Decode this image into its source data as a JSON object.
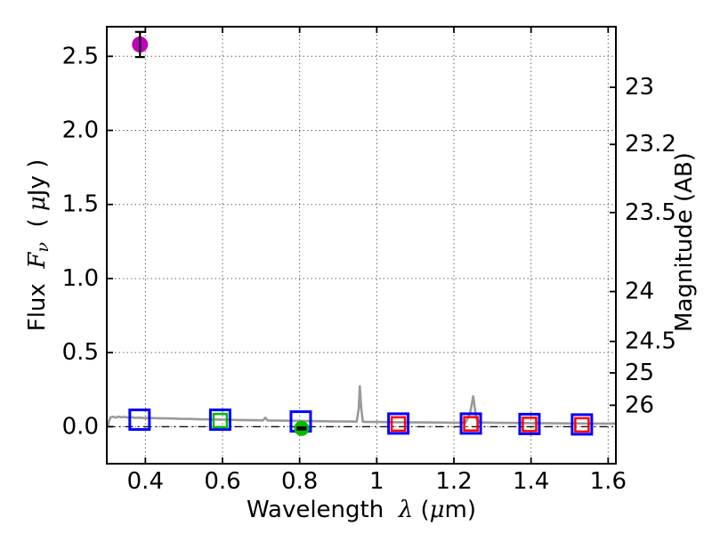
{
  "figure": {
    "background": "#ffffff",
    "title": ""
  },
  "chart_data": {
    "type": "line+scatter",
    "title": "",
    "xlabel": "Wavelength  λ (μm)",
    "xlabel_parts": [
      {
        "text": "Wavelength  "
      },
      {
        "text": "λ",
        "math": true
      },
      {
        "text": " ("
      },
      {
        "text": "μ",
        "math": true
      },
      {
        "text": "m)"
      }
    ],
    "ylabel_left": "Flux Fν ( μJy )",
    "ylabel_left_parts": [
      {
        "text": "Flux  "
      },
      {
        "text": "F",
        "math": true
      },
      {
        "text": "ν",
        "math": true,
        "sub": true
      },
      {
        "text": "  ( "
      },
      {
        "text": "μ",
        "math": true
      },
      {
        "text": "Jy )"
      }
    ],
    "ylabel_right": "Magnitude (AB)",
    "ylabel_right_parts": [
      {
        "text": "Magnitude (AB)"
      }
    ],
    "xlim": [
      0.3,
      1.62
    ],
    "ylim_flux": [
      -0.25,
      2.7
    ],
    "ab_zeropoint_ujy": 23.9,
    "x_ticks": [
      {
        "value": 0.4,
        "label": "0.4"
      },
      {
        "value": 0.6,
        "label": "0.6"
      },
      {
        "value": 0.8,
        "label": "0.8"
      },
      {
        "value": 1.0,
        "label": "1"
      },
      {
        "value": 1.2,
        "label": "1.2"
      },
      {
        "value": 1.4,
        "label": "1.4"
      },
      {
        "value": 1.6,
        "label": "1.6"
      }
    ],
    "y_ticks_flux": [
      {
        "value": 0.0,
        "label": "0.0"
      },
      {
        "value": 0.5,
        "label": "0.5"
      },
      {
        "value": 1.0,
        "label": "1.0"
      },
      {
        "value": 1.5,
        "label": "1.5"
      },
      {
        "value": 2.0,
        "label": "2.0"
      },
      {
        "value": 2.5,
        "label": "2.5"
      }
    ],
    "y_ticks_mag": [
      {
        "value": 23,
        "label": "23"
      },
      {
        "value": 23.2,
        "label": "23.2"
      },
      {
        "value": 23.5,
        "label": "23.5"
      },
      {
        "value": 24,
        "label": "24"
      },
      {
        "value": 24.5,
        "label": "24.5"
      },
      {
        "value": 25,
        "label": "25"
      },
      {
        "value": 26,
        "label": "26"
      }
    ],
    "grid": {
      "show": true,
      "line_style": "dotted",
      "color": "#666666"
    },
    "zero_line": {
      "value": 0,
      "line_style": "dash-dot",
      "color": "#111111"
    },
    "legend": {
      "show": false
    },
    "series": [
      {
        "name": "model-spectrum",
        "type": "line",
        "color": "#999999",
        "width": 2.6,
        "points": [
          [
            0.303,
            0.004
          ],
          [
            0.306,
            0.04
          ],
          [
            0.31,
            0.063
          ],
          [
            0.316,
            0.067
          ],
          [
            0.323,
            0.061
          ],
          [
            0.33,
            0.068
          ],
          [
            0.338,
            0.063
          ],
          [
            0.346,
            0.066
          ],
          [
            0.355,
            0.061
          ],
          [
            0.364,
            0.064
          ],
          [
            0.374,
            0.059
          ],
          [
            0.384,
            0.061
          ],
          [
            0.395,
            0.058
          ],
          [
            0.41,
            0.059
          ],
          [
            0.43,
            0.057
          ],
          [
            0.45,
            0.056
          ],
          [
            0.47,
            0.055
          ],
          [
            0.49,
            0.053
          ],
          [
            0.515,
            0.052
          ],
          [
            0.54,
            0.05
          ],
          [
            0.565,
            0.049
          ],
          [
            0.59,
            0.048
          ],
          [
            0.615,
            0.047
          ],
          [
            0.64,
            0.045
          ],
          [
            0.665,
            0.044
          ],
          [
            0.69,
            0.043
          ],
          [
            0.705,
            0.042
          ],
          [
            0.711,
            0.06
          ],
          [
            0.717,
            0.042
          ],
          [
            0.74,
            0.041
          ],
          [
            0.77,
            0.04
          ],
          [
            0.8,
            0.039
          ],
          [
            0.84,
            0.037
          ],
          [
            0.88,
            0.036
          ],
          [
            0.92,
            0.035
          ],
          [
            0.948,
            0.034
          ],
          [
            0.953,
            0.12
          ],
          [
            0.956,
            0.272
          ],
          [
            0.96,
            0.12
          ],
          [
            0.964,
            0.033
          ],
          [
            1.0,
            0.032
          ],
          [
            1.05,
            0.03
          ],
          [
            1.1,
            0.029
          ],
          [
            1.15,
            0.028
          ],
          [
            1.2,
            0.027
          ],
          [
            1.23,
            0.027
          ],
          [
            1.242,
            0.09
          ],
          [
            1.25,
            0.205
          ],
          [
            1.258,
            0.055
          ],
          [
            1.266,
            0.028
          ],
          [
            1.31,
            0.026
          ],
          [
            1.36,
            0.025
          ],
          [
            1.41,
            0.024
          ],
          [
            1.46,
            0.023
          ],
          [
            1.51,
            0.022
          ],
          [
            1.56,
            0.021
          ],
          [
            1.62,
            0.021
          ]
        ]
      },
      {
        "name": "photometry-blue-squares",
        "type": "scatter",
        "marker": "open-square",
        "color": "#0000ff",
        "size": 22,
        "stroke_width": 3,
        "points": [
          [
            0.385,
            0.047
          ],
          [
            0.594,
            0.047
          ],
          [
            0.803,
            0.035
          ],
          [
            1.056,
            0.021
          ],
          [
            1.244,
            0.021
          ],
          [
            1.396,
            0.018
          ],
          [
            1.532,
            0.015
          ]
        ]
      },
      {
        "name": "photometry-green-square",
        "type": "scatter",
        "marker": "open-square",
        "color": "#00bb00",
        "size": 15,
        "stroke_width": 2.5,
        "points": [
          [
            0.594,
            0.041
          ]
        ]
      },
      {
        "name": "photometry-red-squares",
        "type": "scatter",
        "marker": "open-square",
        "color": "#ff0000",
        "size": 15,
        "stroke_width": 2.5,
        "points": [
          [
            1.056,
            0.018
          ],
          [
            1.244,
            0.019
          ],
          [
            1.396,
            0.015
          ],
          [
            1.532,
            0.012
          ]
        ]
      },
      {
        "name": "detection-green-circle",
        "type": "scatter",
        "marker": "filled-circle",
        "color": "#00bb00",
        "size": 17,
        "points": [
          [
            0.805,
            -0.012
          ]
        ]
      },
      {
        "name": "measurement-dash-black",
        "type": "scatter",
        "marker": "filled-dash",
        "color": "#000000",
        "size": 11,
        "points": [
          [
            0.805,
            -0.012
          ]
        ]
      },
      {
        "name": "detection-magenta-circle",
        "type": "scatter",
        "marker": "filled-circle",
        "color": "#bf00bf",
        "size": 18,
        "points": [
          [
            0.386,
            2.58
          ]
        ],
        "error_y": 0.085,
        "error_color": "#000000"
      }
    ]
  }
}
